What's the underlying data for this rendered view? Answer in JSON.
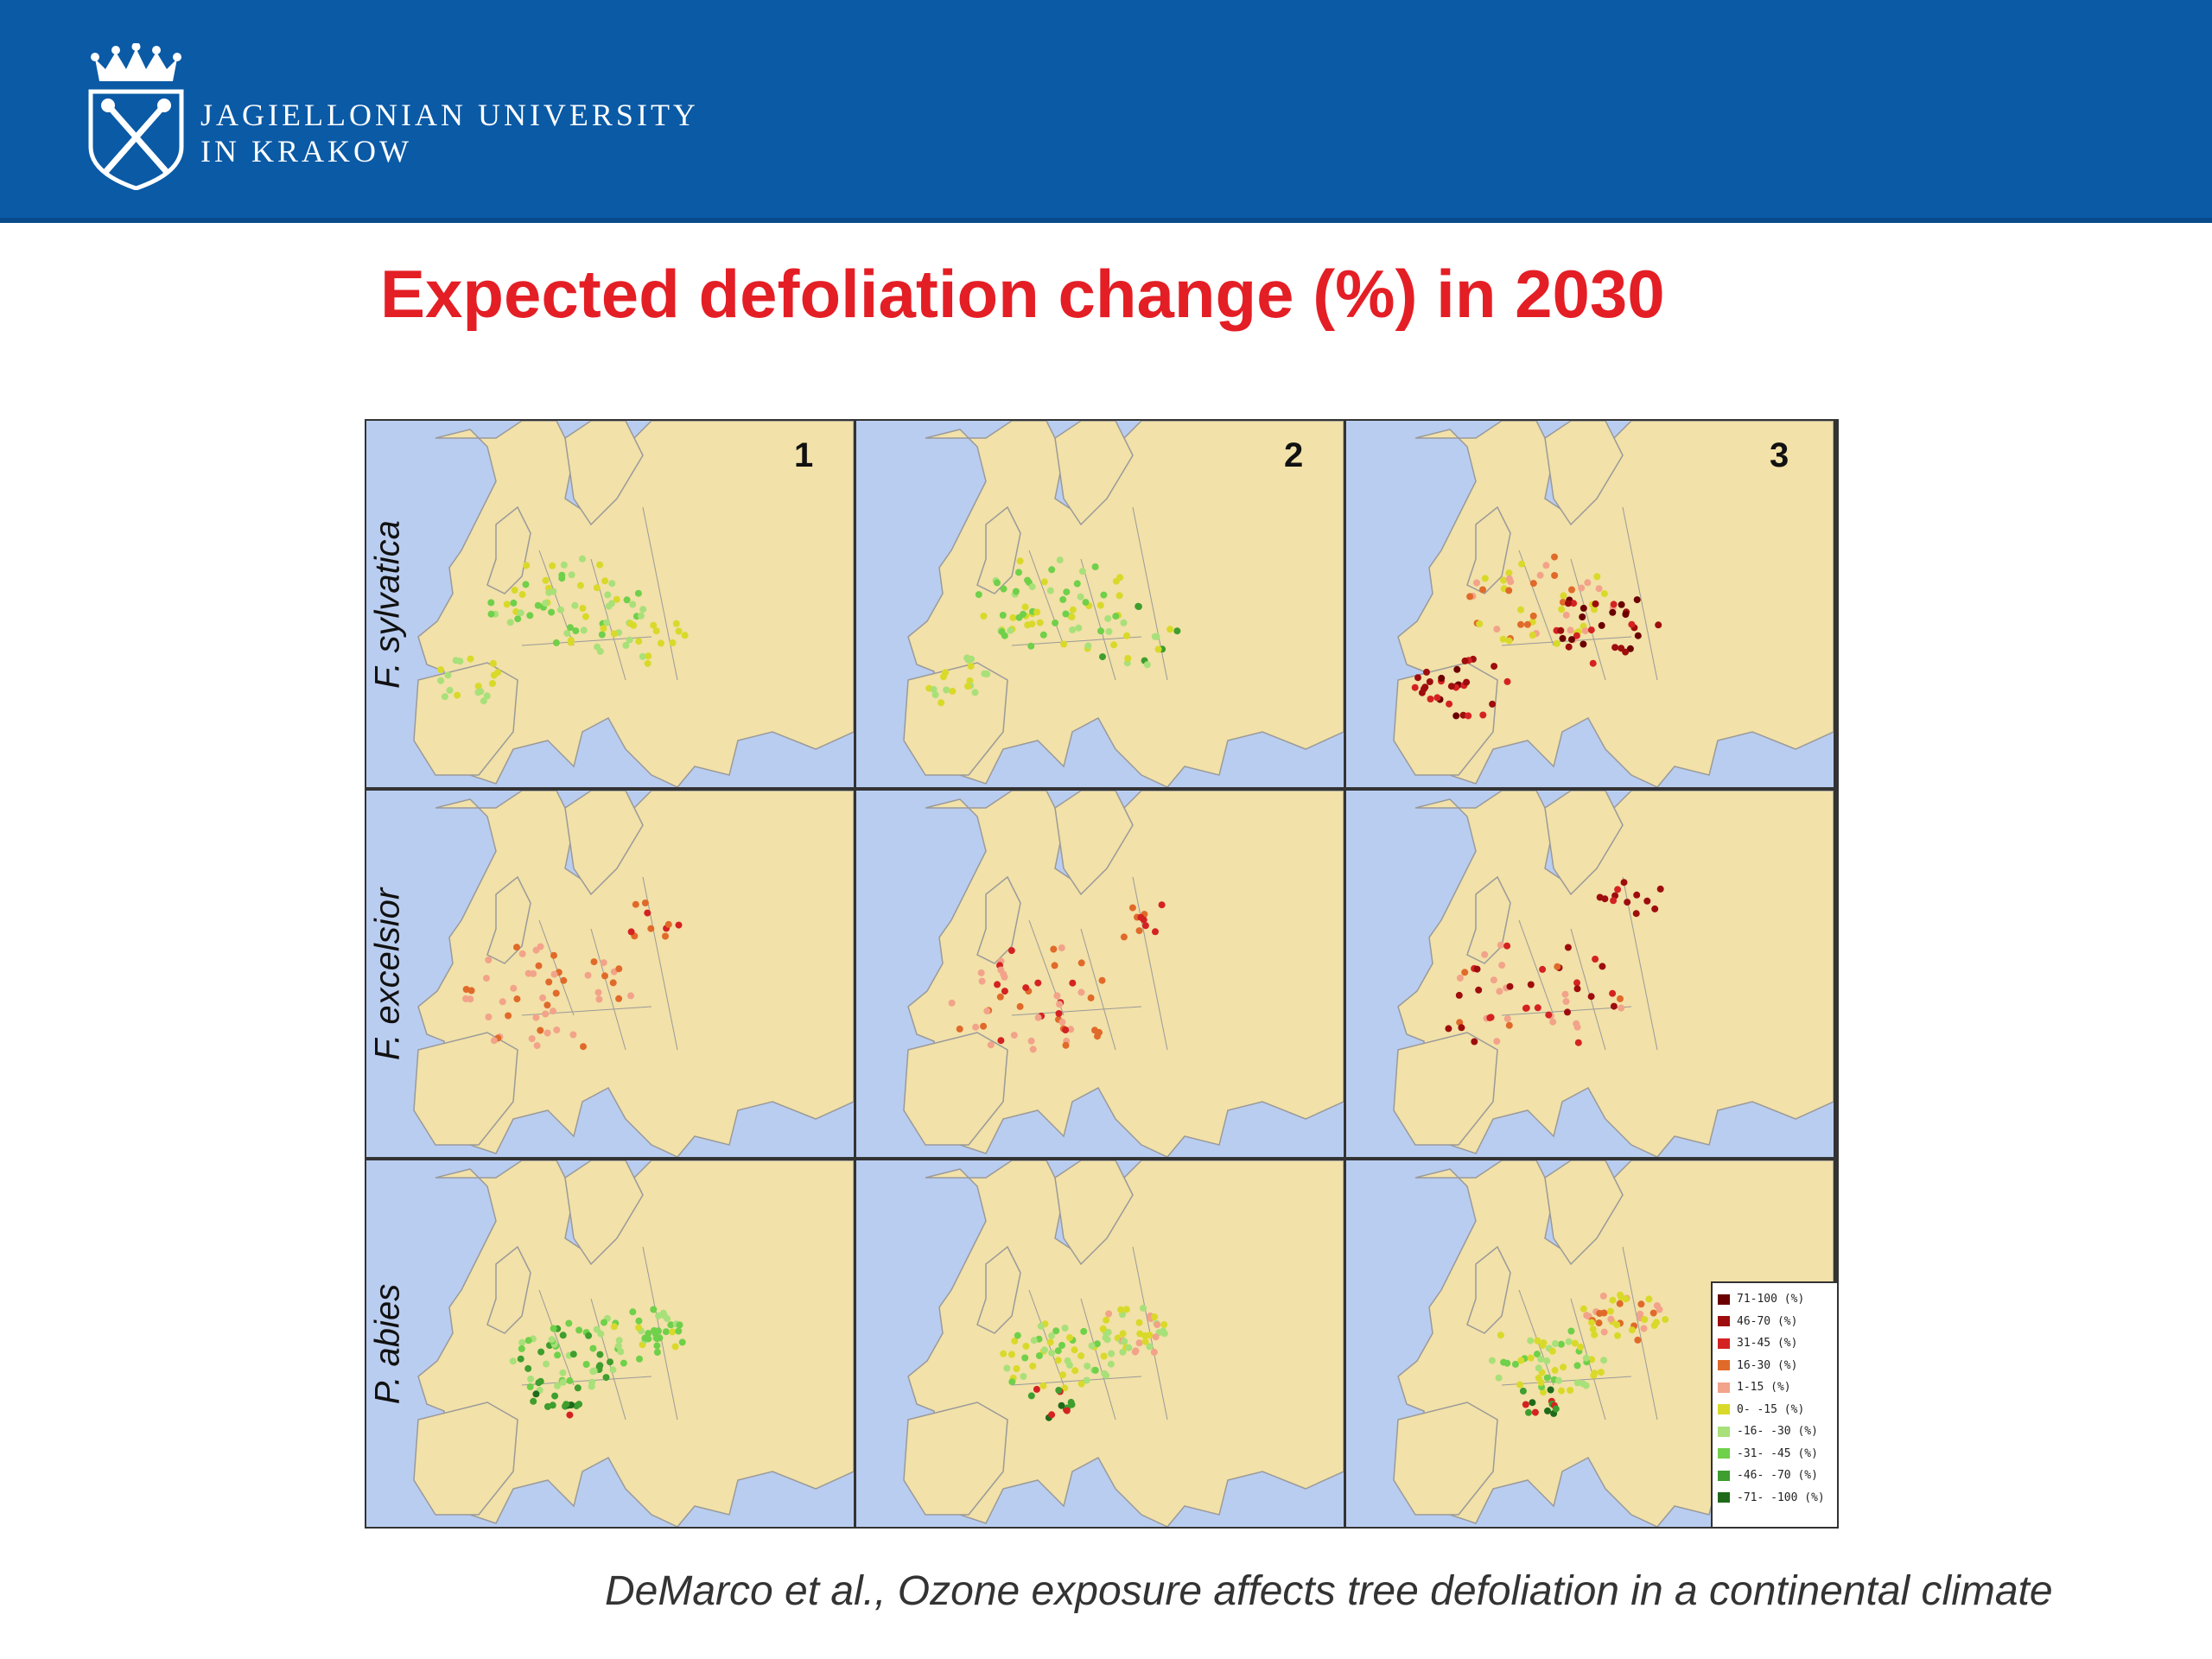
{
  "header": {
    "bg_color": "#0a5aa6",
    "logo_icon": "jagiellonian-crest-icon",
    "university_line1": "JAGIELLONIAN UNIVERSITY",
    "university_line2": "IN KRAKOW"
  },
  "title": "Expected defoliation change (%) in 2030",
  "title_color": "#e41e25",
  "panel_numbers": [
    "1",
    "2",
    "3"
  ],
  "species": [
    "F. sylvatica",
    "F. excelsior",
    "P. abies"
  ],
  "legend": {
    "items": [
      {
        "label": "71-100 (%)",
        "color": "#6b0000"
      },
      {
        "label": "46-70 (%)",
        "color": "#9e0d0d"
      },
      {
        "label": "31-45 (%)",
        "color": "#d42222"
      },
      {
        "label": "16-30 (%)",
        "color": "#e06a2a"
      },
      {
        "label": "1-15 (%)",
        "color": "#f2a38a"
      },
      {
        "label": "0- -15 (%)",
        "color": "#d9d92a"
      },
      {
        "label": "-16- -30 (%)",
        "color": "#a8e07a"
      },
      {
        "label": "-31- -45 (%)",
        "color": "#6fd04a"
      },
      {
        "label": "-46- -70 (%)",
        "color": "#3e9e2e"
      },
      {
        "label": "-71- -100 (%)",
        "color": "#1f6a1a"
      }
    ]
  },
  "map_colors": {
    "sea": "#b9cdf0",
    "land": "#f2e1a8",
    "border": "#9a9a9a"
  },
  "citation": "DeMarco et al., Ozone exposure affects tree defoliation in a continental climate"
}
